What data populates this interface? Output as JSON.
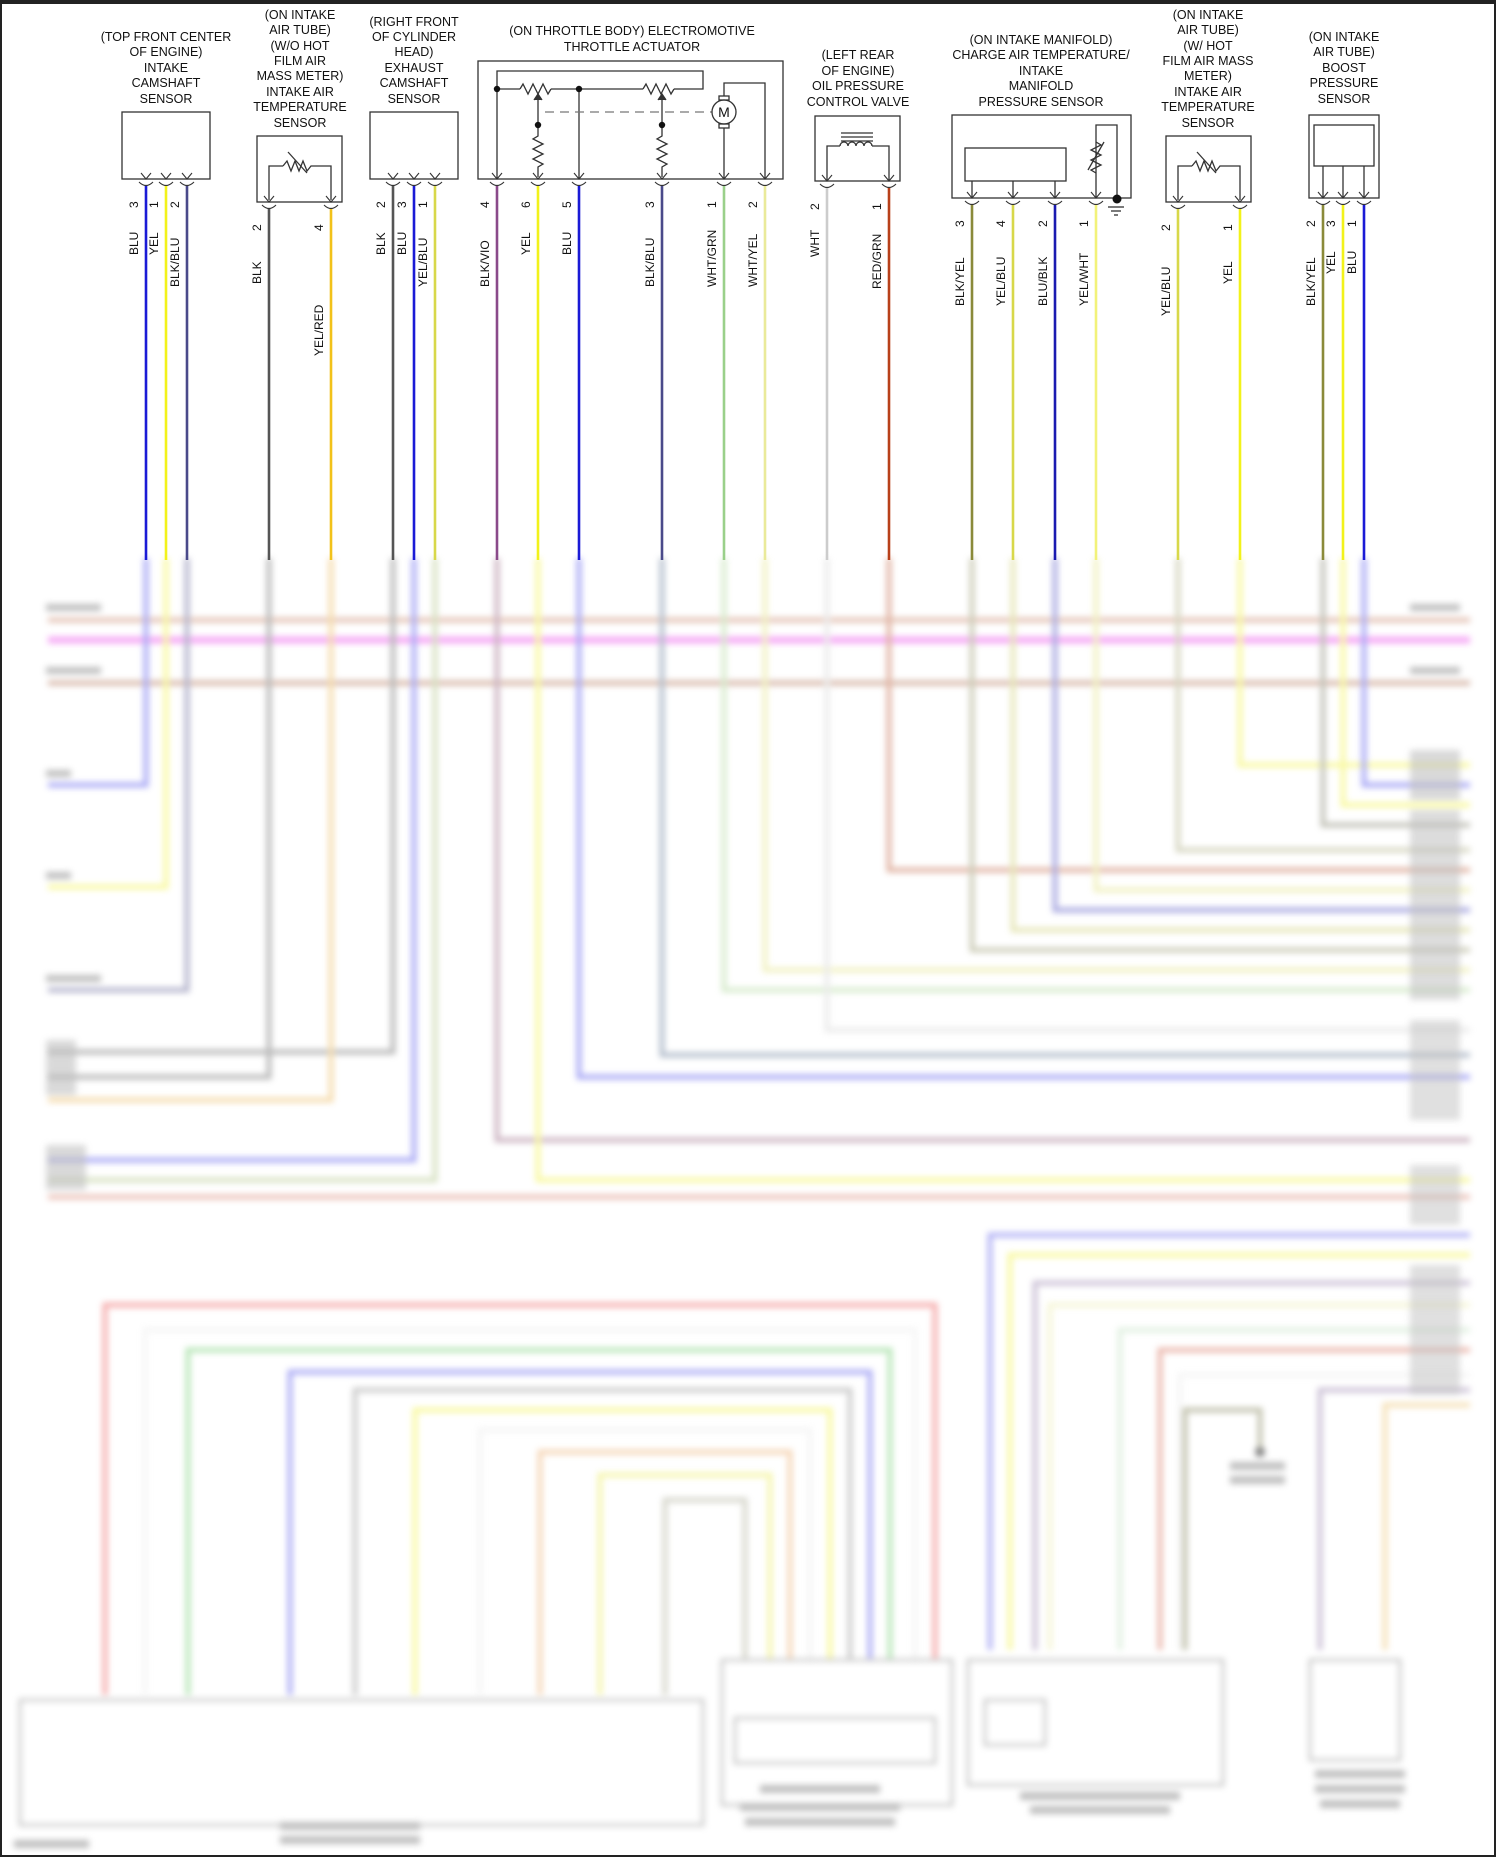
{
  "diagram": {
    "type": "automotive wiring diagram",
    "components": [
      {
        "id": "intake-cam",
        "label": [
          "(TOP FRONT CENTER",
          "OF ENGINE)",
          "INTAKE",
          "CAMSHAFT",
          "SENSOR"
        ],
        "pins": [
          {
            "num": "3",
            "wire": "BLU",
            "color": "#1a1ad6"
          },
          {
            "num": "1",
            "wire": "YEL",
            "color": "#f2f21a"
          },
          {
            "num": "2",
            "wire": "BLK/BLU",
            "color": "#4a4a8a"
          }
        ]
      },
      {
        "id": "iat-no-hfm",
        "label": [
          "(ON INTAKE",
          "AIR TUBE)",
          "(W/O HOT",
          "FILM AIR",
          "MASS METER)",
          "INTAKE AIR",
          "TEMPERATURE",
          "SENSOR"
        ],
        "pins": [
          {
            "num": "2",
            "wire": "BLK",
            "color": "#555555"
          },
          {
            "num": "4",
            "wire": "YEL/RED",
            "color": "#f2c21a"
          }
        ]
      },
      {
        "id": "exhaust-cam",
        "label": [
          "(RIGHT FRONT",
          "OF CYLINDER",
          "HEAD)",
          "EXHAUST",
          "CAMSHAFT",
          "SENSOR"
        ],
        "pins": [
          {
            "num": "2",
            "wire": "BLK",
            "color": "#555555"
          },
          {
            "num": "3",
            "wire": "BLU",
            "color": "#1a1ad6"
          },
          {
            "num": "1",
            "wire": "YEL/BLU",
            "color": "#d8d84a"
          }
        ]
      },
      {
        "id": "throttle",
        "label": [
          "(ON THROTTLE BODY) ELECTROMOTIVE",
          "THROTTLE ACTUATOR"
        ],
        "motor_symbol": "M",
        "pins": [
          {
            "num": "4",
            "wire": "BLK/VIO",
            "color": "#8a4a8a"
          },
          {
            "num": "6",
            "wire": "YEL",
            "color": "#f2f21a"
          },
          {
            "num": "5",
            "wire": "BLU",
            "color": "#1a1ad6"
          },
          {
            "num": "3",
            "wire": "BLK/BLU",
            "color": "#4a4a8a"
          },
          {
            "num": "1",
            "wire": "WHT/GRN",
            "color": "#9ad08a"
          },
          {
            "num": "2",
            "wire": "WHT/YEL",
            "color": "#eaea9a"
          }
        ]
      },
      {
        "id": "oil-valve",
        "label": [
          "(LEFT REAR",
          "OF ENGINE)",
          "OIL PRESSURE",
          "CONTROL VALVE"
        ],
        "pins": [
          {
            "num": "2",
            "wire": "WHT",
            "color": "#cccccc"
          },
          {
            "num": "1",
            "wire": "RED/GRN",
            "color": "#b8401a"
          }
        ]
      },
      {
        "id": "charge-air",
        "label": [
          "(ON INTAKE MANIFOLD)",
          "CHARGE AIR TEMPERATURE/",
          "INTAKE",
          "MANIFOLD",
          "PRESSURE SENSOR"
        ],
        "pins": [
          {
            "num": "3",
            "wire": "BLK/YEL",
            "color": "#8a8a3a"
          },
          {
            "num": "4",
            "wire": "YEL/BLU",
            "color": "#d8d84a"
          },
          {
            "num": "2",
            "wire": "BLU/BLK",
            "color": "#1a1ab0"
          },
          {
            "num": "1",
            "wire": "YEL/WHT",
            "color": "#f2f27a"
          }
        ]
      },
      {
        "id": "iat-hfm",
        "label": [
          "(ON INTAKE",
          "AIR TUBE)",
          "(W/ HOT",
          "FILM AIR MASS",
          "METER)",
          "INTAKE AIR",
          "TEMPERATURE",
          "SENSOR"
        ],
        "pins": [
          {
            "num": "2",
            "wire": "YEL/BLU",
            "color": "#d8d84a"
          },
          {
            "num": "1",
            "wire": "YEL",
            "color": "#f2f21a"
          }
        ]
      },
      {
        "id": "boost",
        "label": [
          "(ON INTAKE",
          "AIR TUBE)",
          "BOOST",
          "PRESSURE",
          "SENSOR"
        ],
        "pins": [
          {
            "num": "2",
            "wire": "BLK/YEL",
            "color": "#8a8a3a"
          },
          {
            "num": "3",
            "wire": "YEL",
            "color": "#f2f21a"
          },
          {
            "num": "1",
            "wire": "BLU",
            "color": "#1a1ad6"
          }
        ]
      }
    ],
    "lower_section": "blurred / unreadable"
  }
}
